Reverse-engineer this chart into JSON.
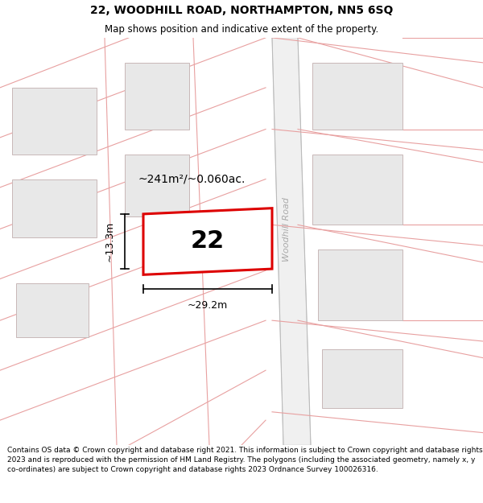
{
  "title": "22, WOODHILL ROAD, NORTHAMPTON, NN5 6SQ",
  "subtitle": "Map shows position and indicative extent of the property.",
  "footer": "Contains OS data © Crown copyright and database right 2021. This information is subject to Crown copyright and database rights 2023 and is reproduced with the permission of HM Land Registry. The polygons (including the associated geometry, namely x, y co-ordinates) are subject to Crown copyright and database rights 2023 Ordnance Survey 100026316.",
  "road_label": "Woodhill Road",
  "property_number": "22",
  "area_label": "~241m²/~0.060ac.",
  "width_label": "~29.2m",
  "height_label": "~13.3m",
  "title_fontsize": 10,
  "subtitle_fontsize": 8.5,
  "footer_fontsize": 6.5,
  "neighbor_fill": "#e8e8e8",
  "neighbor_edge": "#c8b8b8",
  "road_line_color": "#e8a0a0",
  "property_edge": "#dd0000",
  "road_band_color": "#f0f0f0"
}
